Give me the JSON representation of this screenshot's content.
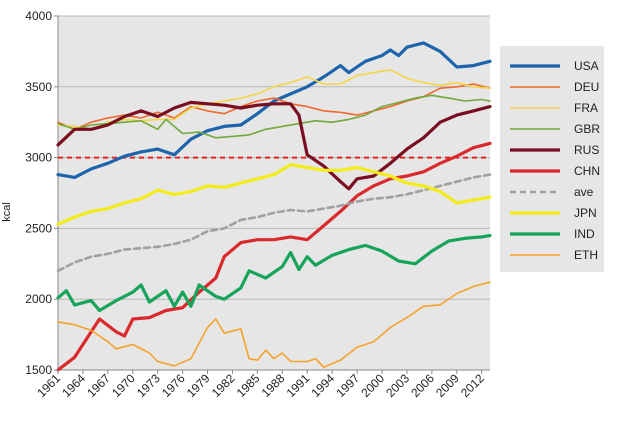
{
  "chart_data": {
    "type": "line",
    "title": "",
    "xlabel": "",
    "ylabel": "kcal",
    "xlim": [
      1961,
      2013
    ],
    "ylim": [
      1500,
      4000
    ],
    "y_ticks": [
      "1500",
      "2000",
      "2500",
      "3000",
      "3500",
      "4000"
    ],
    "x_ticks": [
      "1961",
      "1964",
      "1967",
      "1970",
      "1973",
      "1976",
      "1979",
      "1982",
      "1985",
      "1988",
      "1991",
      "1994",
      "1997",
      "2000",
      "2003",
      "2006",
      "2009",
      "2012"
    ],
    "grid": "horizontal",
    "plot_background": "#e6e6e6",
    "legend_position": "right",
    "reference_line": {
      "y": 3000,
      "color": "#e32222",
      "style": "dashed"
    },
    "series": [
      {
        "name": "USA",
        "color": "#1e64ad",
        "width": 3.2,
        "points": [
          [
            1961,
            2880
          ],
          [
            1963,
            2860
          ],
          [
            1965,
            2920
          ],
          [
            1967,
            2960
          ],
          [
            1969,
            3010
          ],
          [
            1971,
            3040
          ],
          [
            1973,
            3060
          ],
          [
            1975,
            3020
          ],
          [
            1977,
            3130
          ],
          [
            1979,
            3190
          ],
          [
            1981,
            3220
          ],
          [
            1983,
            3230
          ],
          [
            1985,
            3310
          ],
          [
            1987,
            3400
          ],
          [
            1989,
            3450
          ],
          [
            1991,
            3500
          ],
          [
            1993,
            3570
          ],
          [
            1995,
            3650
          ],
          [
            1996,
            3600
          ],
          [
            1998,
            3680
          ],
          [
            2000,
            3720
          ],
          [
            2001,
            3760
          ],
          [
            2002,
            3720
          ],
          [
            2003,
            3780
          ],
          [
            2005,
            3810
          ],
          [
            2007,
            3750
          ],
          [
            2009,
            3640
          ],
          [
            2011,
            3650
          ],
          [
            2013,
            3680
          ]
        ]
      },
      {
        "name": "DEU",
        "color": "#f0682c",
        "width": 1.6,
        "points": [
          [
            1961,
            3250
          ],
          [
            1963,
            3200
          ],
          [
            1965,
            3250
          ],
          [
            1967,
            3280
          ],
          [
            1969,
            3300
          ],
          [
            1971,
            3280
          ],
          [
            1973,
            3320
          ],
          [
            1975,
            3280
          ],
          [
            1977,
            3360
          ],
          [
            1979,
            3330
          ],
          [
            1981,
            3310
          ],
          [
            1983,
            3360
          ],
          [
            1985,
            3400
          ],
          [
            1987,
            3420
          ],
          [
            1989,
            3380
          ],
          [
            1991,
            3360
          ],
          [
            1993,
            3330
          ],
          [
            1995,
            3320
          ],
          [
            1997,
            3300
          ],
          [
            1999,
            3330
          ],
          [
            2001,
            3360
          ],
          [
            2003,
            3400
          ],
          [
            2005,
            3430
          ],
          [
            2007,
            3490
          ],
          [
            2009,
            3500
          ],
          [
            2011,
            3520
          ],
          [
            2013,
            3490
          ]
        ]
      },
      {
        "name": "FRA",
        "color": "#f5d54a",
        "width": 1.6,
        "points": [
          [
            1961,
            3230
          ],
          [
            1963,
            3220
          ],
          [
            1965,
            3200
          ],
          [
            1967,
            3250
          ],
          [
            1969,
            3270
          ],
          [
            1971,
            3260
          ],
          [
            1973,
            3270
          ],
          [
            1975,
            3270
          ],
          [
            1977,
            3350
          ],
          [
            1979,
            3380
          ],
          [
            1981,
            3400
          ],
          [
            1983,
            3420
          ],
          [
            1985,
            3450
          ],
          [
            1987,
            3500
          ],
          [
            1989,
            3530
          ],
          [
            1991,
            3570
          ],
          [
            1993,
            3520
          ],
          [
            1995,
            3520
          ],
          [
            1997,
            3580
          ],
          [
            1999,
            3600
          ],
          [
            2001,
            3620
          ],
          [
            2003,
            3560
          ],
          [
            2005,
            3530
          ],
          [
            2007,
            3510
          ],
          [
            2009,
            3530
          ],
          [
            2011,
            3500
          ],
          [
            2013,
            3490
          ]
        ]
      },
      {
        "name": "GBR",
        "color": "#71a83a",
        "width": 1.6,
        "points": [
          [
            1961,
            3240
          ],
          [
            1963,
            3200
          ],
          [
            1965,
            3230
          ],
          [
            1967,
            3240
          ],
          [
            1969,
            3250
          ],
          [
            1971,
            3260
          ],
          [
            1973,
            3200
          ],
          [
            1974,
            3270
          ],
          [
            1976,
            3170
          ],
          [
            1978,
            3180
          ],
          [
            1980,
            3140
          ],
          [
            1982,
            3150
          ],
          [
            1984,
            3160
          ],
          [
            1986,
            3200
          ],
          [
            1988,
            3220
          ],
          [
            1990,
            3240
          ],
          [
            1992,
            3260
          ],
          [
            1994,
            3250
          ],
          [
            1996,
            3270
          ],
          [
            1998,
            3300
          ],
          [
            2000,
            3360
          ],
          [
            2002,
            3390
          ],
          [
            2004,
            3420
          ],
          [
            2006,
            3440
          ],
          [
            2008,
            3420
          ],
          [
            2010,
            3400
          ],
          [
            2012,
            3410
          ],
          [
            2013,
            3400
          ]
        ]
      },
      {
        "name": "RUS",
        "color": "#7a0e20",
        "width": 3.2,
        "points": [
          [
            1961,
            3090
          ],
          [
            1963,
            3200
          ],
          [
            1965,
            3200
          ],
          [
            1967,
            3230
          ],
          [
            1969,
            3290
          ],
          [
            1971,
            3330
          ],
          [
            1973,
            3290
          ],
          [
            1975,
            3350
          ],
          [
            1977,
            3390
          ],
          [
            1979,
            3380
          ],
          [
            1981,
            3370
          ],
          [
            1983,
            3350
          ],
          [
            1985,
            3370
          ],
          [
            1987,
            3380
          ],
          [
            1989,
            3380
          ],
          [
            1990,
            3300
          ],
          [
            1991,
            3020
          ],
          [
            1993,
            2940
          ],
          [
            1995,
            2830
          ],
          [
            1996,
            2780
          ],
          [
            1997,
            2850
          ],
          [
            1999,
            2870
          ],
          [
            2001,
            2960
          ],
          [
            2003,
            3060
          ],
          [
            2005,
            3140
          ],
          [
            2007,
            3250
          ],
          [
            2009,
            3300
          ],
          [
            2011,
            3330
          ],
          [
            2013,
            3360
          ]
        ]
      },
      {
        "name": "CHN",
        "color": "#d9292d",
        "width": 3.2,
        "points": [
          [
            1961,
            1500
          ],
          [
            1963,
            1590
          ],
          [
            1964,
            1680
          ],
          [
            1966,
            1860
          ],
          [
            1968,
            1770
          ],
          [
            1969,
            1740
          ],
          [
            1970,
            1860
          ],
          [
            1972,
            1870
          ],
          [
            1974,
            1920
          ],
          [
            1976,
            1940
          ],
          [
            1978,
            2050
          ],
          [
            1980,
            2150
          ],
          [
            1981,
            2300
          ],
          [
            1983,
            2400
          ],
          [
            1985,
            2420
          ],
          [
            1987,
            2420
          ],
          [
            1989,
            2440
          ],
          [
            1991,
            2420
          ],
          [
            1993,
            2520
          ],
          [
            1995,
            2620
          ],
          [
            1997,
            2730
          ],
          [
            1999,
            2800
          ],
          [
            2001,
            2850
          ],
          [
            2003,
            2870
          ],
          [
            2005,
            2900
          ],
          [
            2007,
            2960
          ],
          [
            2009,
            3010
          ],
          [
            2011,
            3070
          ],
          [
            2013,
            3100
          ]
        ]
      },
      {
        "name": "ave",
        "color": "#a0a0a0",
        "width": 2.6,
        "dash": "6,4",
        "points": [
          [
            1961,
            2200
          ],
          [
            1963,
            2260
          ],
          [
            1965,
            2300
          ],
          [
            1967,
            2320
          ],
          [
            1969,
            2350
          ],
          [
            1971,
            2360
          ],
          [
            1973,
            2370
          ],
          [
            1975,
            2390
          ],
          [
            1977,
            2420
          ],
          [
            1979,
            2480
          ],
          [
            1981,
            2500
          ],
          [
            1983,
            2560
          ],
          [
            1985,
            2580
          ],
          [
            1987,
            2610
          ],
          [
            1989,
            2630
          ],
          [
            1991,
            2620
          ],
          [
            1993,
            2640
          ],
          [
            1995,
            2660
          ],
          [
            1997,
            2690
          ],
          [
            1999,
            2710
          ],
          [
            2001,
            2720
          ],
          [
            2003,
            2740
          ],
          [
            2005,
            2770
          ],
          [
            2007,
            2800
          ],
          [
            2009,
            2830
          ],
          [
            2011,
            2860
          ],
          [
            2013,
            2880
          ]
        ]
      },
      {
        "name": "JPN",
        "color": "#f3ec1a",
        "width": 3.2,
        "points": [
          [
            1961,
            2530
          ],
          [
            1963,
            2580
          ],
          [
            1965,
            2620
          ],
          [
            1967,
            2640
          ],
          [
            1969,
            2680
          ],
          [
            1971,
            2710
          ],
          [
            1973,
            2770
          ],
          [
            1975,
            2740
          ],
          [
            1977,
            2760
          ],
          [
            1979,
            2800
          ],
          [
            1981,
            2790
          ],
          [
            1983,
            2820
          ],
          [
            1985,
            2850
          ],
          [
            1987,
            2880
          ],
          [
            1989,
            2950
          ],
          [
            1991,
            2930
          ],
          [
            1993,
            2910
          ],
          [
            1995,
            2910
          ],
          [
            1997,
            2930
          ],
          [
            1999,
            2900
          ],
          [
            2001,
            2870
          ],
          [
            2003,
            2820
          ],
          [
            2005,
            2800
          ],
          [
            2007,
            2760
          ],
          [
            2009,
            2680
          ],
          [
            2011,
            2700
          ],
          [
            2013,
            2720
          ]
        ]
      },
      {
        "name": "IND",
        "color": "#16a35a",
        "width": 3.2,
        "points": [
          [
            1961,
            2010
          ],
          [
            1962,
            2060
          ],
          [
            1963,
            1960
          ],
          [
            1965,
            1990
          ],
          [
            1966,
            1920
          ],
          [
            1968,
            1990
          ],
          [
            1970,
            2050
          ],
          [
            1971,
            2100
          ],
          [
            1972,
            1980
          ],
          [
            1974,
            2060
          ],
          [
            1975,
            1950
          ],
          [
            1976,
            2050
          ],
          [
            1977,
            1950
          ],
          [
            1978,
            2100
          ],
          [
            1980,
            2020
          ],
          [
            1981,
            2000
          ],
          [
            1983,
            2080
          ],
          [
            1984,
            2200
          ],
          [
            1986,
            2150
          ],
          [
            1988,
            2230
          ],
          [
            1989,
            2330
          ],
          [
            1990,
            2210
          ],
          [
            1991,
            2300
          ],
          [
            1992,
            2240
          ],
          [
            1994,
            2310
          ],
          [
            1996,
            2350
          ],
          [
            1998,
            2380
          ],
          [
            2000,
            2340
          ],
          [
            2002,
            2270
          ],
          [
            2004,
            2250
          ],
          [
            2006,
            2340
          ],
          [
            2008,
            2410
          ],
          [
            2010,
            2430
          ],
          [
            2012,
            2440
          ],
          [
            2013,
            2450
          ]
        ]
      },
      {
        "name": "ETH",
        "color": "#f5a22a",
        "width": 1.6,
        "points": [
          [
            1961,
            1840
          ],
          [
            1963,
            1820
          ],
          [
            1965,
            1780
          ],
          [
            1967,
            1700
          ],
          [
            1968,
            1650
          ],
          [
            1970,
            1680
          ],
          [
            1972,
            1620
          ],
          [
            1973,
            1560
          ],
          [
            1975,
            1530
          ],
          [
            1977,
            1580
          ],
          [
            1979,
            1800
          ],
          [
            1980,
            1860
          ],
          [
            1981,
            1760
          ],
          [
            1983,
            1790
          ],
          [
            1984,
            1580
          ],
          [
            1985,
            1570
          ],
          [
            1986,
            1640
          ],
          [
            1987,
            1580
          ],
          [
            1988,
            1620
          ],
          [
            1989,
            1560
          ],
          [
            1991,
            1560
          ],
          [
            1992,
            1580
          ],
          [
            1993,
            1520
          ],
          [
            1995,
            1570
          ],
          [
            1997,
            1660
          ],
          [
            1999,
            1700
          ],
          [
            2001,
            1800
          ],
          [
            2003,
            1870
          ],
          [
            2005,
            1950
          ],
          [
            2007,
            1960
          ],
          [
            2009,
            2040
          ],
          [
            2011,
            2090
          ],
          [
            2013,
            2120
          ]
        ]
      }
    ]
  }
}
